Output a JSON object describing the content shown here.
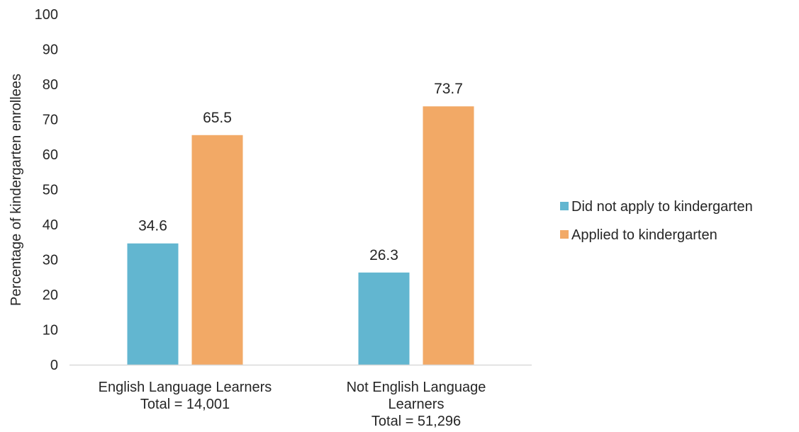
{
  "chart_data": {
    "type": "bar",
    "title": "",
    "xlabel": "",
    "ylabel": "Percentage of kindergarten enrollees",
    "ylim": [
      0,
      100
    ],
    "yticks": [
      "0",
      "10",
      "20",
      "30",
      "40",
      "50",
      "60",
      "70",
      "80",
      "90",
      "100"
    ],
    "grid": false,
    "legend_position": "right",
    "categories": [
      [
        "English Language Learners",
        "Total = 14,001"
      ],
      [
        "Not English Language",
        "Learners",
        "Total = 51,296"
      ]
    ],
    "series": [
      {
        "name": "Did not apply to kindergarten",
        "color": "#62b6d0",
        "values": [
          34.6,
          26.3
        ],
        "labels": [
          "34.6",
          "26.3"
        ]
      },
      {
        "name": "Applied to kindergarten",
        "color": "#f2a966",
        "values": [
          65.5,
          73.7
        ],
        "labels": [
          "65.5",
          "73.7"
        ]
      }
    ],
    "axis_color": "#d9d9d9"
  }
}
